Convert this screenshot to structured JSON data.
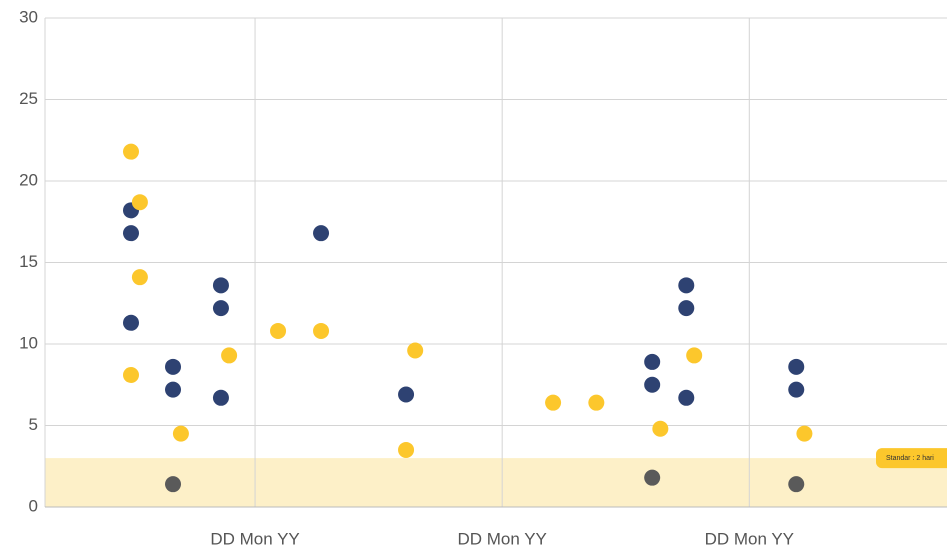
{
  "chart_data": {
    "type": "scatter",
    "xlim": [
      0.15,
      3.8
    ],
    "xticks": [
      {
        "value": 1,
        "label": "DD Mon YY"
      },
      {
        "value": 2,
        "label": "DD Mon YY"
      },
      {
        "value": 3,
        "label": "DD Mon YY"
      }
    ],
    "ylim": [
      0,
      30
    ],
    "yticks": [
      0,
      5,
      10,
      15,
      20,
      25,
      30
    ],
    "grid": true,
    "band": {
      "range": [
        0,
        3
      ],
      "label": "Standar : 2 hari",
      "color": "#fdf0c8",
      "label_color": "#fcc72c"
    },
    "series": [
      {
        "color": "#2e4272",
        "x": [
          0.498,
          0.498,
          0.498,
          0.668,
          0.668,
          0.862,
          0.862,
          0.862,
          1.267,
          1.611,
          2.607,
          2.607,
          2.745,
          2.745,
          2.745,
          3.19,
          3.19
        ],
        "values": [
          18.2,
          16.8,
          11.3,
          8.6,
          7.2,
          13.6,
          12.2,
          6.7,
          16.8,
          6.9,
          8.9,
          7.5,
          13.6,
          12.2,
          6.7,
          8.6,
          7.2
        ]
      },
      {
        "color": "#fcc72c",
        "x": [
          0.498,
          0.534,
          0.534,
          0.498,
          0.7,
          0.895,
          1.093,
          1.267,
          1.648,
          1.611,
          2.206,
          2.381,
          2.64,
          2.777,
          3.223
        ],
        "values": [
          21.8,
          18.7,
          14.1,
          8.1,
          4.5,
          9.3,
          10.8,
          10.8,
          9.6,
          3.5,
          6.4,
          6.4,
          4.8,
          9.3,
          4.5
        ]
      },
      {
        "color": "#5a5a5a",
        "x": [
          0.668,
          2.607,
          3.19
        ],
        "values": [
          1.4,
          1.8,
          1.4
        ]
      }
    ]
  }
}
